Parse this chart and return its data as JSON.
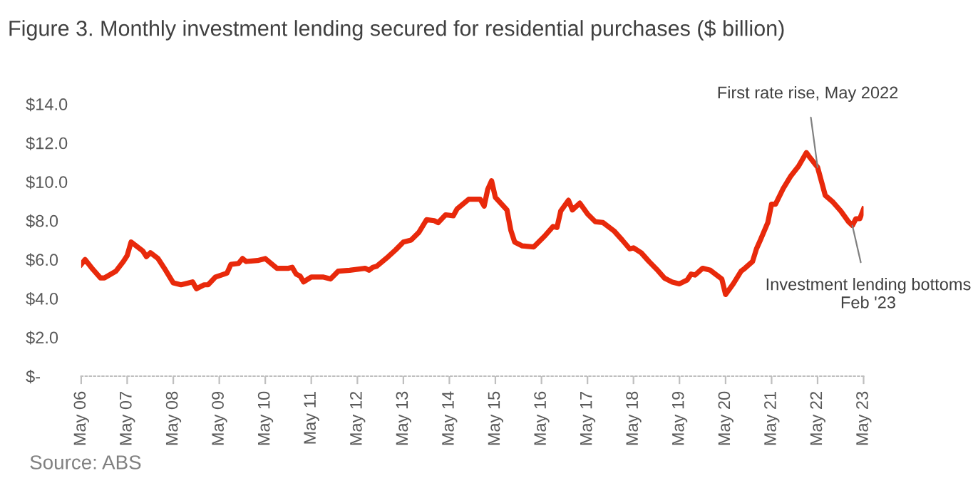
{
  "chart_data": {
    "type": "line",
    "title": "Figure 3. Monthly investment lending secured for residential purchases ($ billion)",
    "x": [
      "2006-05",
      "2006-06",
      "2006-08",
      "2006-10",
      "2006-11",
      "2007-02",
      "2007-04",
      "2007-05",
      "2007-06",
      "2007-09",
      "2007-10",
      "2007-11",
      "2008-01",
      "2008-03",
      "2008-05",
      "2008-07",
      "2008-10",
      "2008-11",
      "2009-01",
      "2009-02",
      "2009-04",
      "2009-07",
      "2009-08",
      "2009-10",
      "2009-11",
      "2009-12",
      "2010-03",
      "2010-05",
      "2010-08",
      "2010-11",
      "2010-12",
      "2011-01",
      "2011-02",
      "2011-03",
      "2011-05",
      "2011-08",
      "2011-10",
      "2011-12",
      "2012-03",
      "2012-07",
      "2012-08",
      "2012-09",
      "2012-10",
      "2013-01",
      "2013-03",
      "2013-05",
      "2013-07",
      "2013-09",
      "2013-11",
      "2014-01",
      "2014-02",
      "2014-04",
      "2014-06",
      "2014-07",
      "2014-10",
      "2015-01",
      "2015-02",
      "2015-03",
      "2015-04",
      "2015-05",
      "2015-08",
      "2015-09",
      "2015-10",
      "2015-12",
      "2016-03",
      "2016-06",
      "2016-08",
      "2016-09",
      "2016-10",
      "2016-12",
      "2017-01",
      "2017-03",
      "2017-05",
      "2017-07",
      "2017-09",
      "2017-12",
      "2018-02",
      "2018-04",
      "2018-05",
      "2018-07",
      "2018-09",
      "2018-11",
      "2019-01",
      "2019-03",
      "2019-05",
      "2019-07",
      "2019-08",
      "2019-09",
      "2019-11",
      "2020-01",
      "2020-04",
      "2020-05",
      "2020-07",
      "2020-09",
      "2020-10",
      "2020-12",
      "2021-01",
      "2021-02",
      "2021-04",
      "2021-05",
      "2021-06",
      "2021-08",
      "2021-10",
      "2021-12",
      "2022-02",
      "2022-03",
      "2022-05",
      "2022-07",
      "2022-09",
      "2022-11",
      "2023-01",
      "2023-02",
      "2023-03",
      "2023-04",
      "2023-05"
    ],
    "series": [
      {
        "color": "#e8290b",
        "values": [
          5.75,
          6.0,
          5.5,
          5.05,
          5.05,
          5.4,
          5.9,
          6.2,
          6.9,
          6.45,
          6.15,
          6.35,
          6.05,
          5.45,
          4.8,
          4.7,
          4.85,
          4.5,
          4.7,
          4.7,
          5.1,
          5.3,
          5.75,
          5.8,
          6.05,
          5.9,
          5.95,
          6.05,
          5.55,
          5.55,
          5.6,
          5.25,
          5.15,
          4.85,
          5.1,
          5.1,
          5.0,
          5.4,
          5.45,
          5.55,
          5.45,
          5.6,
          5.65,
          6.15,
          6.5,
          6.9,
          7.0,
          7.4,
          8.05,
          8.0,
          7.9,
          8.3,
          8.25,
          8.6,
          9.1,
          9.1,
          8.75,
          9.6,
          10.05,
          9.2,
          8.55,
          7.5,
          6.9,
          6.7,
          6.65,
          7.25,
          7.7,
          7.65,
          8.5,
          9.05,
          8.55,
          8.9,
          8.35,
          7.95,
          7.9,
          7.45,
          7.0,
          6.55,
          6.6,
          6.35,
          5.9,
          5.5,
          5.05,
          4.85,
          4.75,
          4.95,
          5.25,
          5.2,
          5.55,
          5.45,
          5.0,
          4.2,
          4.75,
          5.4,
          5.55,
          5.9,
          6.55,
          7.0,
          7.9,
          8.85,
          8.85,
          9.65,
          10.3,
          10.8,
          11.5,
          11.25,
          10.75,
          9.3,
          8.95,
          8.5,
          7.95,
          7.75,
          8.1,
          8.1,
          8.6
        ]
      }
    ],
    "xlim": [
      "2006-05",
      "2023-05"
    ],
    "xticks": [
      {
        "value": "2006-05",
        "label": "May 06"
      },
      {
        "value": "2007-05",
        "label": "May 07"
      },
      {
        "value": "2008-05",
        "label": "May 08"
      },
      {
        "value": "2009-05",
        "label": "May 09"
      },
      {
        "value": "2010-05",
        "label": "May 10"
      },
      {
        "value": "2011-05",
        "label": "May 11"
      },
      {
        "value": "2012-05",
        "label": "May 12"
      },
      {
        "value": "2013-05",
        "label": "May 13"
      },
      {
        "value": "2014-05",
        "label": "May 14"
      },
      {
        "value": "2015-05",
        "label": "May 15"
      },
      {
        "value": "2016-05",
        "label": "May 16"
      },
      {
        "value": "2017-05",
        "label": "May 17"
      },
      {
        "value": "2018-05",
        "label": "May 18"
      },
      {
        "value": "2019-05",
        "label": "May 19"
      },
      {
        "value": "2020-05",
        "label": "May 20"
      },
      {
        "value": "2021-05",
        "label": "May 21"
      },
      {
        "value": "2022-05",
        "label": "May 22"
      },
      {
        "value": "2023-05",
        "label": "May 23"
      }
    ],
    "ylim": [
      0,
      14
    ],
    "yticks": [
      {
        "value": 0,
        "label": "$-"
      },
      {
        "value": 2,
        "label": "$2.0"
      },
      {
        "value": 4,
        "label": "$4.0"
      },
      {
        "value": 6,
        "label": "$6.0"
      },
      {
        "value": 8,
        "label": "$8.0"
      },
      {
        "value": 10,
        "label": "$10.0"
      },
      {
        "value": 12,
        "label": "$12.0"
      },
      {
        "value": 14,
        "label": "$14.0"
      }
    ],
    "annotations": [
      {
        "text": "First rate rise, May 2022",
        "x": "2022-05",
        "y": 10.75
      },
      {
        "text": "Investment lending bottoms Feb '23",
        "x": "2023-02",
        "y": 7.75
      },
      "Source: ABS"
    ],
    "grid": false,
    "legend": false,
    "marker": "none",
    "line_style": "solid"
  }
}
